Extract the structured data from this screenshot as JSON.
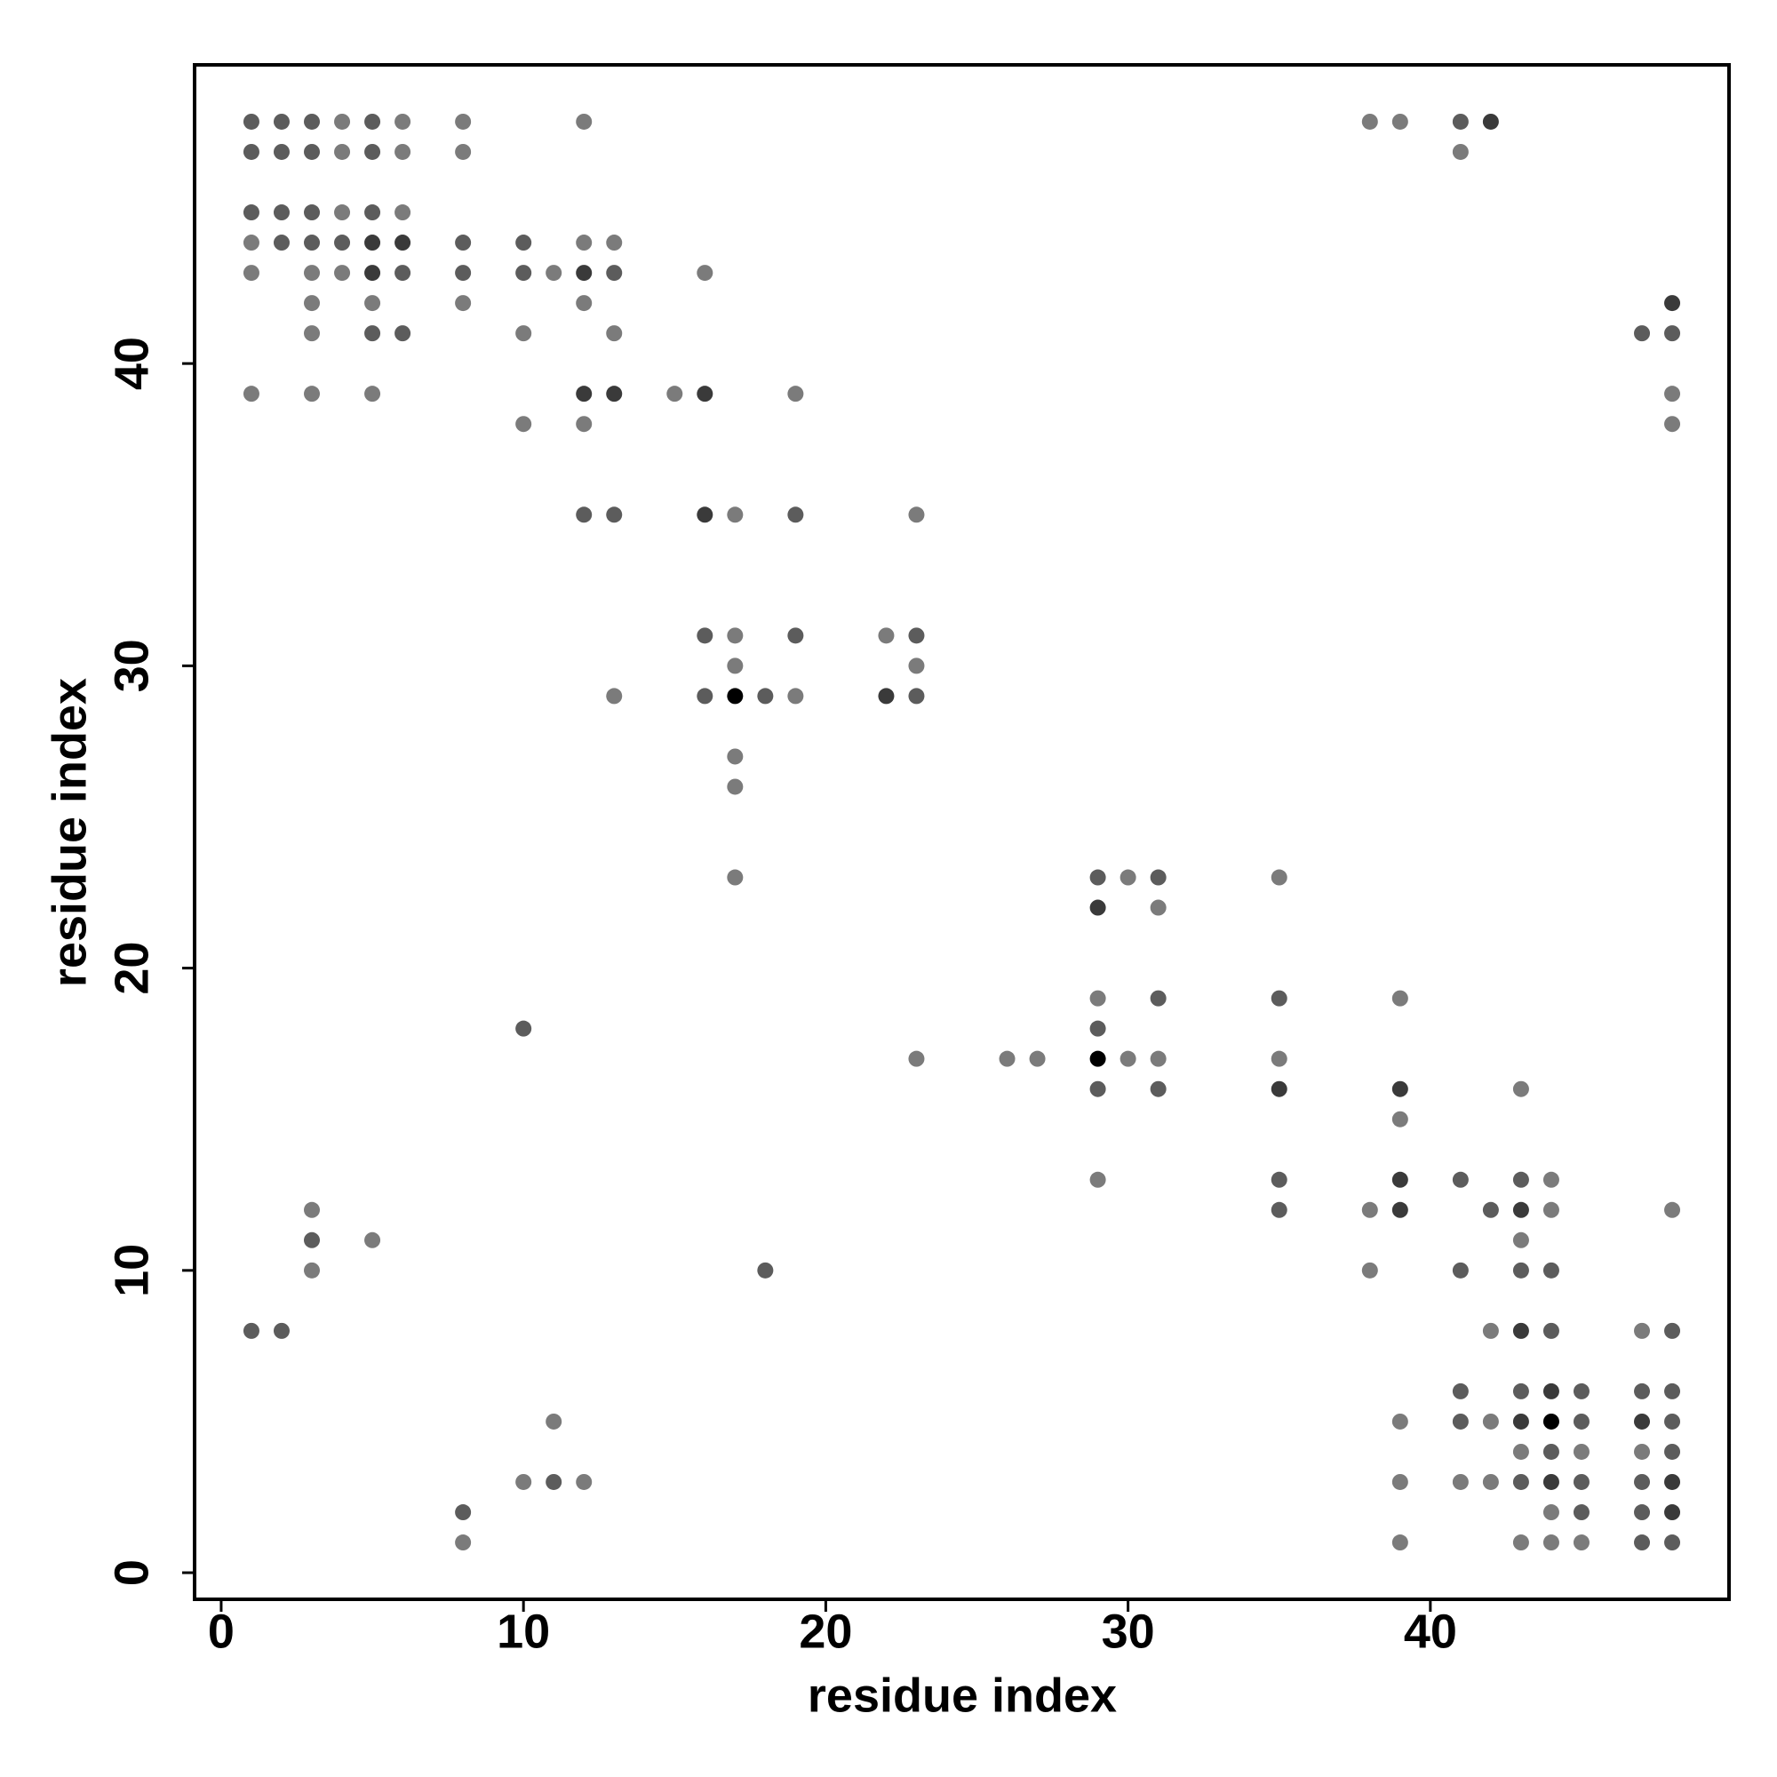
{
  "chart_data": {
    "type": "scatter",
    "xlabel": "residue index",
    "ylabel": "residue index",
    "xlim": [
      -0.88,
      49.88
    ],
    "ylim": [
      -0.88,
      49.88
    ],
    "xticks": [
      0,
      10,
      20,
      30,
      40
    ],
    "yticks": [
      0,
      10,
      20,
      30,
      40
    ],
    "x": [
      1,
      2,
      3,
      4,
      5,
      6,
      8,
      12,
      38,
      39,
      41,
      42,
      1,
      2,
      3,
      4,
      5,
      6,
      8,
      41,
      1,
      2,
      3,
      4,
      5,
      6,
      1,
      2,
      3,
      4,
      5,
      6,
      8,
      10,
      12,
      13,
      1,
      3,
      4,
      5,
      6,
      8,
      10,
      11,
      12,
      13,
      16,
      3,
      5,
      8,
      12,
      48,
      3,
      5,
      6,
      10,
      13,
      47,
      48,
      1,
      3,
      5,
      12,
      13,
      15,
      16,
      19,
      48,
      10,
      12,
      48,
      12,
      13,
      16,
      17,
      19,
      23,
      16,
      17,
      19,
      22,
      23,
      17,
      23,
      13,
      16,
      17,
      18,
      19,
      22,
      23,
      17,
      17,
      17,
      29,
      30,
      31,
      35,
      29,
      31,
      29,
      31,
      35,
      39,
      10,
      29,
      23,
      26,
      27,
      29,
      30,
      31,
      35,
      29,
      31,
      35,
      39,
      43,
      39,
      29,
      35,
      39,
      41,
      43,
      44,
      3,
      35,
      38,
      39,
      42,
      43,
      44,
      48,
      3,
      5,
      43,
      3,
      18,
      38,
      41,
      43,
      44,
      1,
      2,
      42,
      43,
      44,
      47,
      48,
      41,
      43,
      44,
      45,
      47,
      48,
      11,
      39,
      41,
      42,
      43,
      44,
      45,
      47,
      48,
      43,
      44,
      45,
      47,
      48,
      10,
      11,
      12,
      39,
      41,
      42,
      43,
      44,
      45,
      47,
      48,
      8,
      44,
      45,
      47,
      48,
      8,
      39,
      43,
      44,
      45,
      47,
      48
    ],
    "y": [
      48,
      48,
      48,
      48,
      48,
      48,
      48,
      48,
      48,
      48,
      48,
      48,
      47,
      47,
      47,
      47,
      47,
      47,
      47,
      47,
      45,
      45,
      45,
      45,
      45,
      45,
      44,
      44,
      44,
      44,
      44,
      44,
      44,
      44,
      44,
      44,
      43,
      43,
      43,
      43,
      43,
      43,
      43,
      43,
      43,
      43,
      43,
      42,
      42,
      42,
      42,
      42,
      41,
      41,
      41,
      41,
      41,
      41,
      41,
      39,
      39,
      39,
      39,
      39,
      39,
      39,
      39,
      39,
      38,
      38,
      38,
      35,
      35,
      35,
      35,
      35,
      35,
      31,
      31,
      31,
      31,
      31,
      30,
      30,
      29,
      29,
      29,
      29,
      29,
      29,
      29,
      27,
      26,
      23,
      23,
      23,
      23,
      23,
      22,
      22,
      19,
      19,
      19,
      19,
      18,
      18,
      17,
      17,
      17,
      17,
      17,
      17,
      17,
      16,
      16,
      16,
      16,
      16,
      15,
      13,
      13,
      13,
      13,
      13,
      13,
      12,
      12,
      12,
      12,
      12,
      12,
      12,
      12,
      11,
      11,
      11,
      10,
      10,
      10,
      10,
      10,
      10,
      8,
      8,
      8,
      8,
      8,
      8,
      8,
      6,
      6,
      6,
      6,
      6,
      6,
      5,
      5,
      5,
      5,
      5,
      5,
      5,
      5,
      5,
      4,
      4,
      4,
      4,
      4,
      3,
      3,
      3,
      3,
      3,
      3,
      3,
      3,
      3,
      3,
      3,
      2,
      2,
      2,
      2,
      2,
      1,
      1,
      1,
      1,
      1,
      1,
      1
    ],
    "colors": [
      "#5c5c5c",
      "#5c5c5c",
      "#5c5c5c",
      "#7b7b7b",
      "#5c5c5c",
      "#7b7b7b",
      "#7b7b7b",
      "#7b7b7b",
      "#7b7b7b",
      "#7b7b7b",
      "#5c5c5c",
      "#3a3a3a",
      "#5c5c5c",
      "#5c5c5c",
      "#5c5c5c",
      "#7b7b7b",
      "#5c5c5c",
      "#7b7b7b",
      "#7b7b7b",
      "#7b7b7b",
      "#5c5c5c",
      "#5c5c5c",
      "#5c5c5c",
      "#7b7b7b",
      "#5c5c5c",
      "#7b7b7b",
      "#7b7b7b",
      "#5c5c5c",
      "#5c5c5c",
      "#5c5c5c",
      "#3a3a3a",
      "#3a3a3a",
      "#5c5c5c",
      "#5c5c5c",
      "#7b7b7b",
      "#7b7b7b",
      "#7b7b7b",
      "#7b7b7b",
      "#7b7b7b",
      "#3a3a3a",
      "#5c5c5c",
      "#5c5c5c",
      "#5c5c5c",
      "#7b7b7b",
      "#3a3a3a",
      "#5c5c5c",
      "#7b7b7b",
      "#7b7b7b",
      "#7b7b7b",
      "#7b7b7b",
      "#7b7b7b",
      "#3a3a3a",
      "#7b7b7b",
      "#5c5c5c",
      "#5c5c5c",
      "#7b7b7b",
      "#7b7b7b",
      "#5c5c5c",
      "#5c5c5c",
      "#7b7b7b",
      "#7b7b7b",
      "#7b7b7b",
      "#3a3a3a",
      "#3a3a3a",
      "#7b7b7b",
      "#3a3a3a",
      "#7b7b7b",
      "#7b7b7b",
      "#7b7b7b",
      "#7b7b7b",
      "#7b7b7b",
      "#5c5c5c",
      "#5c5c5c",
      "#3a3a3a",
      "#7b7b7b",
      "#5c5c5c",
      "#7b7b7b",
      "#5c5c5c",
      "#7b7b7b",
      "#5c5c5c",
      "#7b7b7b",
      "#5c5c5c",
      "#7b7b7b",
      "#7b7b7b",
      "#7b7b7b",
      "#5c5c5c",
      "#000000",
      "#5c5c5c",
      "#7b7b7b",
      "#3a3a3a",
      "#5c5c5c",
      "#7b7b7b",
      "#7b7b7b",
      "#7b7b7b",
      "#5c5c5c",
      "#7b7b7b",
      "#5c5c5c",
      "#7b7b7b",
      "#3a3a3a",
      "#7b7b7b",
      "#7b7b7b",
      "#5c5c5c",
      "#5c5c5c",
      "#7b7b7b",
      "#5c5c5c",
      "#5c5c5c",
      "#7b7b7b",
      "#7b7b7b",
      "#7b7b7b",
      "#000000",
      "#7b7b7b",
      "#7b7b7b",
      "#7b7b7b",
      "#5c5c5c",
      "#5c5c5c",
      "#3a3a3a",
      "#3a3a3a",
      "#7b7b7b",
      "#7b7b7b",
      "#7b7b7b",
      "#5c5c5c",
      "#3a3a3a",
      "#5c5c5c",
      "#5c5c5c",
      "#7b7b7b",
      "#7b7b7b",
      "#5c5c5c",
      "#7b7b7b",
      "#3a3a3a",
      "#5c5c5c",
      "#3a3a3a",
      "#7b7b7b",
      "#7b7b7b",
      "#5c5c5c",
      "#7b7b7b",
      "#7b7b7b",
      "#7b7b7b",
      "#5c5c5c",
      "#7b7b7b",
      "#5c5c5c",
      "#5c5c5c",
      "#5c5c5c",
      "#5c5c5c",
      "#5c5c5c",
      "#7b7b7b",
      "#3a3a3a",
      "#5c5c5c",
      "#7b7b7b",
      "#5c5c5c",
      "#5c5c5c",
      "#5c5c5c",
      "#3a3a3a",
      "#5c5c5c",
      "#5c5c5c",
      "#5c5c5c",
      "#7b7b7b",
      "#7b7b7b",
      "#5c5c5c",
      "#7b7b7b",
      "#3a3a3a",
      "#000000",
      "#5c5c5c",
      "#3a3a3a",
      "#5c5c5c",
      "#7b7b7b",
      "#5c5c5c",
      "#7b7b7b",
      "#7b7b7b",
      "#5c5c5c",
      "#7b7b7b",
      "#5c5c5c",
      "#7b7b7b",
      "#7b7b7b",
      "#7b7b7b",
      "#7b7b7b",
      "#5c5c5c",
      "#3a3a3a",
      "#5c5c5c",
      "#5c5c5c",
      "#3a3a3a",
      "#5c5c5c",
      "#7b7b7b",
      "#5c5c5c",
      "#5c5c5c",
      "#3a3a3a",
      "#7b7b7b",
      "#7b7b7b",
      "#7b7b7b",
      "#7b7b7b",
      "#7b7b7b",
      "#5c5c5c",
      "#5c5c5c"
    ]
  }
}
